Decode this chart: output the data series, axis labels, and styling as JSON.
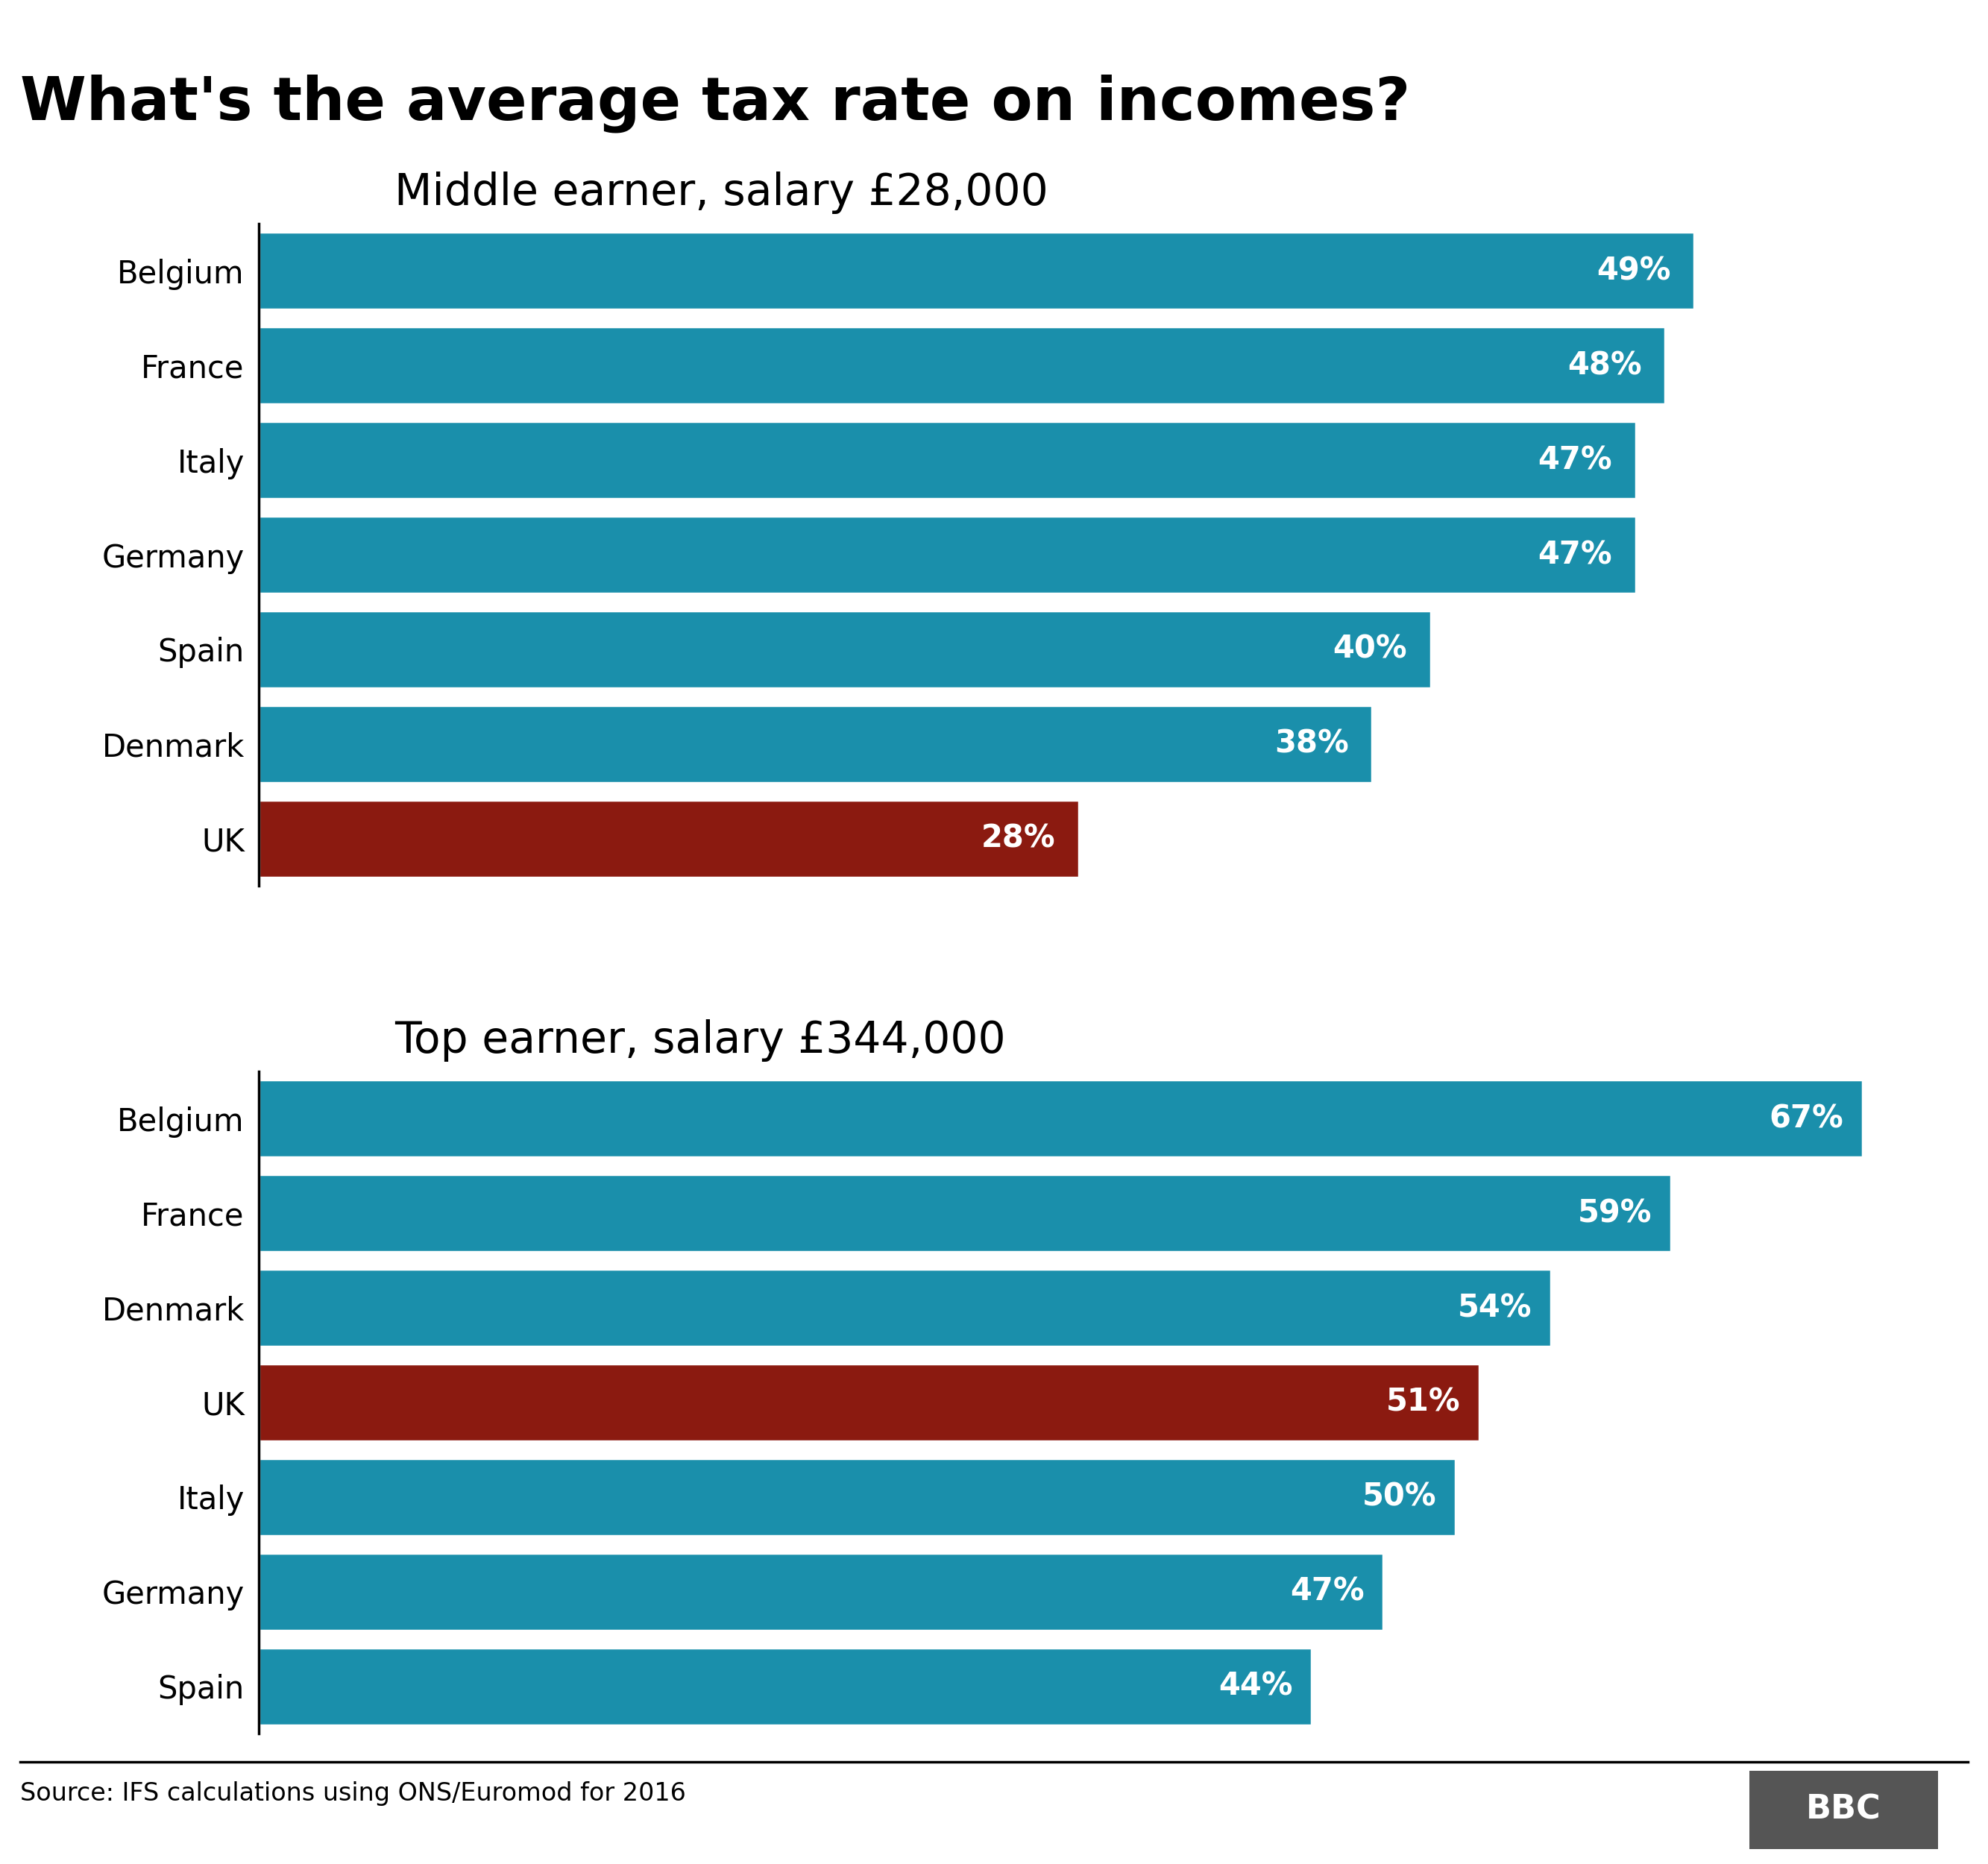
{
  "main_title": "What's the average tax rate on incomes?",
  "chart1_title": "Middle earner, salary £28,000",
  "chart2_title": "Top earner, salary £344,000",
  "chart1_countries": [
    "Belgium",
    "France",
    "Italy",
    "Germany",
    "Spain",
    "Denmark",
    "UK"
  ],
  "chart1_values": [
    49,
    48,
    47,
    47,
    40,
    38,
    28
  ],
  "chart1_colors": [
    "#1a8fab",
    "#1a8fab",
    "#1a8fab",
    "#1a8fab",
    "#1a8fab",
    "#1a8fab",
    "#8b1a10"
  ],
  "chart2_countries": [
    "Belgium",
    "France",
    "Denmark",
    "UK",
    "Italy",
    "Germany",
    "Spain"
  ],
  "chart2_values": [
    67,
    59,
    54,
    51,
    50,
    47,
    44
  ],
  "chart2_colors": [
    "#1a8fab",
    "#1a8fab",
    "#1a8fab",
    "#8b1a10",
    "#1a8fab",
    "#1a8fab",
    "#1a8fab"
  ],
  "source_text": "Source: IFS calculations using ONS/Euromod for 2016",
  "bbc_text": "BBC",
  "bar_label_fontsize": 30,
  "country_label_fontsize": 30,
  "main_title_fontsize": 58,
  "subtitle_fontsize": 42,
  "source_fontsize": 24,
  "chart1_xlim": [
    0,
    58
  ],
  "chart2_xlim": [
    0,
    71
  ],
  "bar_height": 0.82,
  "background_color": "#ffffff",
  "spine_color": "#000000",
  "white": "#ffffff",
  "bbc_bg": "#555555"
}
